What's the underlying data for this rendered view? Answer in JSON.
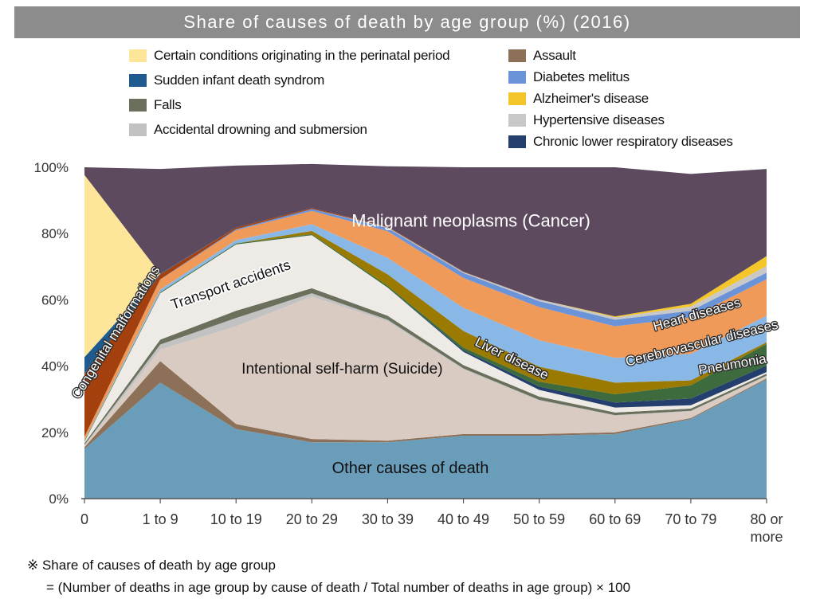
{
  "chart_data": {
    "type": "area",
    "stacked": true,
    "percent_stacked": true,
    "title": "Share of causes of death by age group (%) (2016)",
    "x_categories": [
      "0",
      "1 to 9",
      "10 to 19",
      "20 to 29",
      "30 to 39",
      "40 to 49",
      "50 to 59",
      "60 to 69",
      "70 to 79",
      "80 or more"
    ],
    "y_ticks": [
      "0%",
      "20%",
      "40%",
      "60%",
      "80%",
      "100%"
    ],
    "ylim": [
      0,
      100
    ],
    "legend_position": "top",
    "series": [
      {
        "name": "Other causes of death",
        "color": "#6a9dba",
        "values": [
          15,
          35,
          21,
          17,
          17,
          19,
          19,
          19.5,
          24,
          36
        ],
        "label": "Other causes of death"
      },
      {
        "name": "Assault",
        "color": "#8c7058",
        "values": [
          0.5,
          6.5,
          1.5,
          1,
          0.5,
          0.5,
          0.5,
          0.5,
          0.3,
          0.3
        ]
      },
      {
        "name": "Intentional self-harm (Suicide)",
        "color": "#d9cbc2",
        "values": [
          0.5,
          3.5,
          29.5,
          43,
          36,
          19.5,
          10,
          5,
          2,
          0.7
        ],
        "label": "Intentional self-harm (Suicide)"
      },
      {
        "name": "Accidental drowning and submersion",
        "color": "#c2c2c2",
        "values": [
          0.2,
          1.5,
          2.5,
          1,
          0.5,
          0.3,
          0.3,
          0.2,
          0.2,
          0.1
        ]
      },
      {
        "name": "Falls",
        "color": "#6b705c",
        "values": [
          0.5,
          1.5,
          2.2,
          1.5,
          1.2,
          1,
          1,
          0.8,
          0.7,
          0.6
        ]
      },
      {
        "name": "Transport accidents",
        "color": "#eeebe6",
        "values": [
          0.5,
          14,
          20,
          16,
          8.5,
          4,
          2,
          1.5,
          1,
          0.5
        ],
        "label": "Transport accidents"
      },
      {
        "name": "Chronic lower respiratory diseases",
        "color": "#243e6e",
        "values": [
          0,
          0,
          0,
          0,
          0,
          0.5,
          1,
          1.5,
          2,
          2
        ]
      },
      {
        "name": "Pneumonia",
        "color": "#3d6b3d",
        "values": [
          0.3,
          0.3,
          0.3,
          0.3,
          0.5,
          0.8,
          1.5,
          2.5,
          4,
          6.5
        ],
        "label": "Pneumonia"
      },
      {
        "name": "Liver disease",
        "color": "#9a7a00",
        "values": [
          0,
          0,
          0,
          1,
          3.5,
          5,
          4.5,
          3.5,
          1.5,
          0.5
        ],
        "label": "Liver disease"
      },
      {
        "name": "Cerebrovascular diseases",
        "color": "#8ab8e6",
        "values": [
          0.2,
          0.8,
          1,
          2,
          5,
          7,
          8,
          7.5,
          8,
          8
        ],
        "label": "Cerebrovascular diseases"
      },
      {
        "name": "Heart diseases",
        "color": "#f09a5a",
        "values": [
          1,
          3,
          3,
          4,
          8,
          9,
          10,
          9.5,
          11,
          11
        ],
        "label": "Heart diseases"
      },
      {
        "name": "Diabetes melitus",
        "color": "#6a93d8",
        "values": [
          0,
          0.1,
          0.3,
          0.6,
          1,
          1.5,
          1.8,
          2,
          2,
          2
        ]
      },
      {
        "name": "Hypertensive diseases",
        "color": "#c8c8c8",
        "values": [
          0,
          0,
          0,
          0,
          0.2,
          0.3,
          0.5,
          0.7,
          1.3,
          2
        ]
      },
      {
        "name": "Alzheimer's disease",
        "color": "#f5c62a",
        "values": [
          0,
          0,
          0,
          0,
          0,
          0,
          0,
          0.3,
          0.8,
          3
        ]
      },
      {
        "name": "Congenital malformations",
        "color": "#a3400d",
        "values": [
          19,
          1.5,
          0.5,
          0.3,
          0.2,
          0.1,
          0,
          0,
          0,
          0
        ],
        "label": "Congenital malformations"
      },
      {
        "name": "Sudden infant death syndrom",
        "color": "#1f5b8f",
        "values": [
          5,
          0.2,
          0,
          0,
          0,
          0,
          0,
          0,
          0,
          0
        ]
      },
      {
        "name": "Certain conditions originating in the perinatal period",
        "color": "#fde59a",
        "values": [
          55,
          0,
          0,
          0,
          0,
          0,
          0,
          0,
          0,
          0
        ]
      },
      {
        "name": "Malignant neoplasms (Cancer)",
        "color": "#5d4a5f",
        "values": [
          2.3,
          31.6,
          18.7,
          13.3,
          18.2,
          31.5,
          39.9,
          45,
          39.2,
          26.3
        ],
        "label": "Malignant neoplasms (Cancer)"
      }
    ]
  },
  "legend": {
    "left": [
      {
        "label": "Certain conditions originating in the perinatal period",
        "color": "#fde59a"
      },
      {
        "label": "Sudden infant death syndrom",
        "color": "#1f5b8f"
      },
      {
        "label": "Falls",
        "color": "#6b705c"
      },
      {
        "label": "Accidental drowning and submersion",
        "color": "#c2c2c2"
      }
    ],
    "right": [
      {
        "label": "Assault",
        "color": "#8c7058"
      },
      {
        "label": "Diabetes melitus",
        "color": "#6a93d8"
      },
      {
        "label": "Alzheimer's disease",
        "color": "#f5c62a"
      },
      {
        "label": "Hypertensive diseases",
        "color": "#c8c8c8"
      },
      {
        "label": "Chronic lower respiratory diseases",
        "color": "#243e6e"
      }
    ]
  },
  "footnote": {
    "line1": "※  Share of causes of death by age group",
    "line2": "= (Number of deaths in age group by cause of death / Total number of deaths in age group) × 100"
  }
}
